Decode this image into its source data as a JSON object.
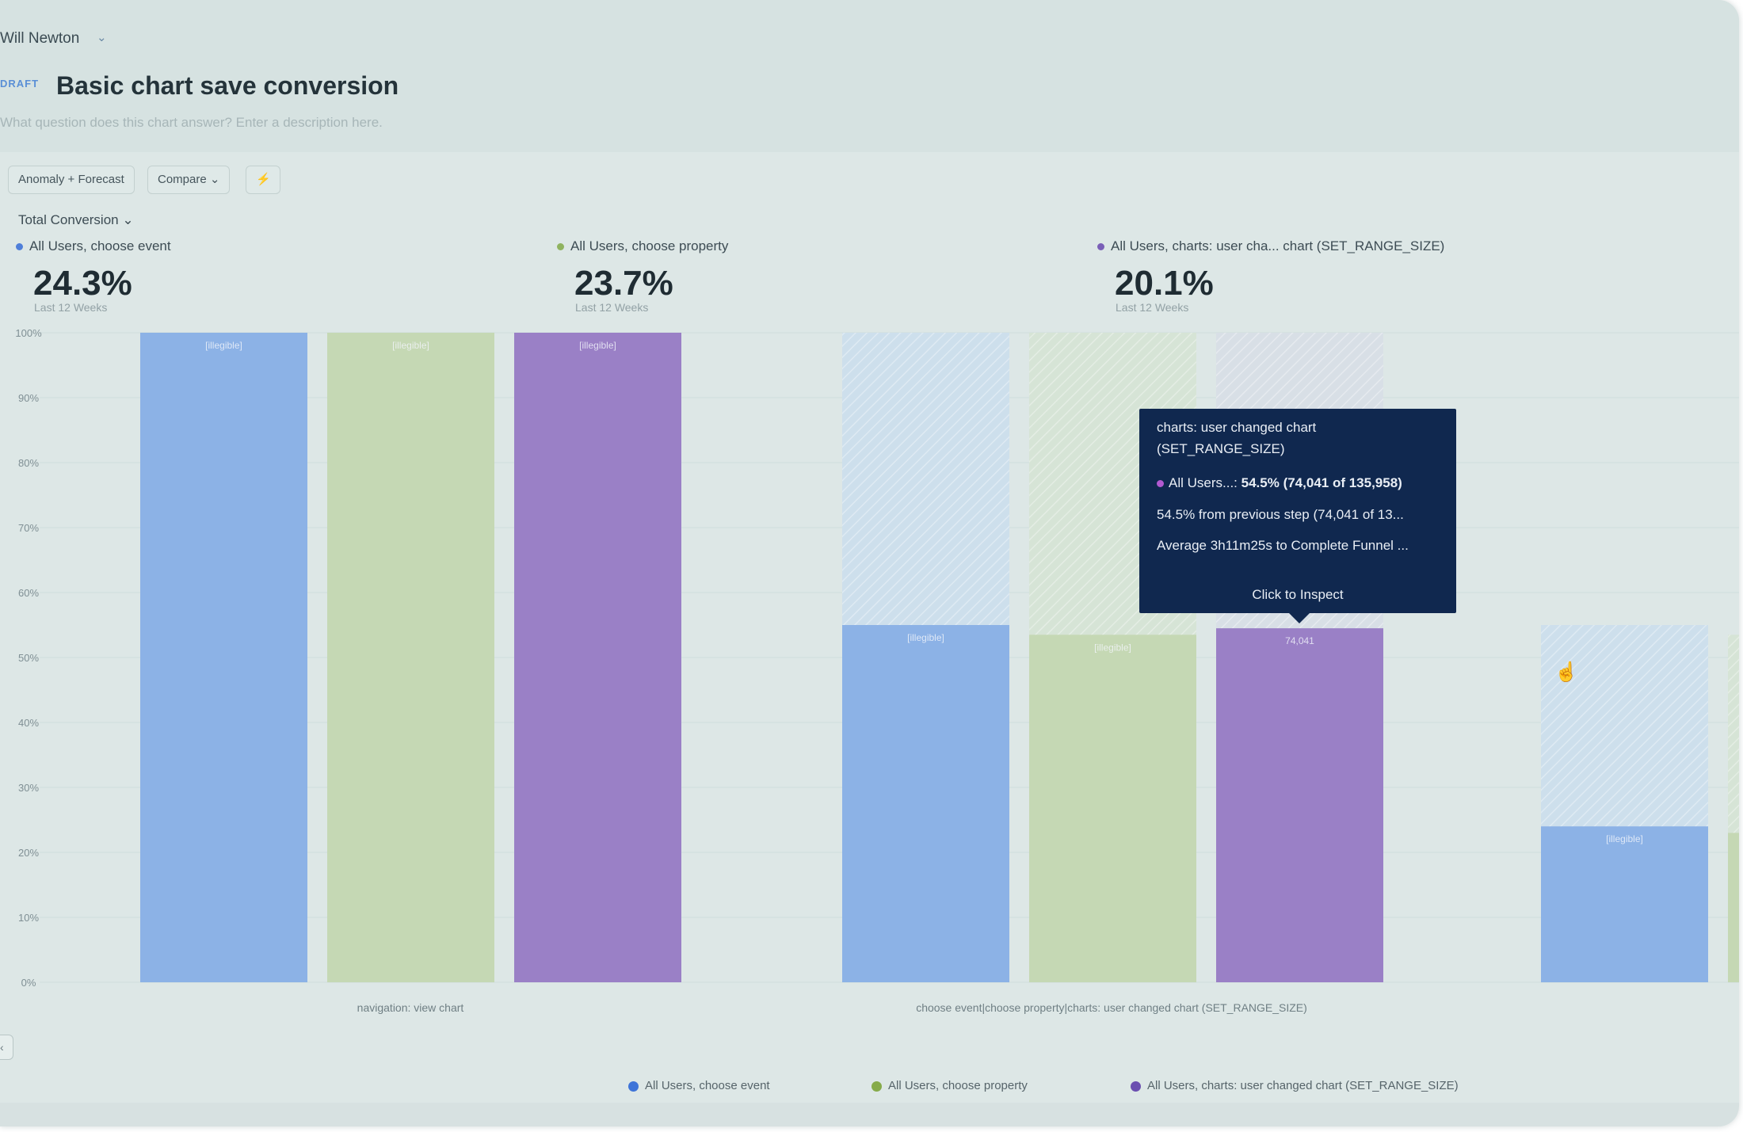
{
  "header": {
    "owner": "Will Newton",
    "owner_chevron": "⌄",
    "draft_badge": "DRAFT",
    "title": "Basic chart save conversion",
    "description_placeholder": "What question does this chart answer? Enter a description here."
  },
  "toolbar": {
    "anomaly_label": "Anomaly + Forecast",
    "compare_label": "Compare ⌄",
    "bolt_icon": "⚡"
  },
  "metric_select": "Total Conversion ⌄",
  "summaries": [
    {
      "label": "All Users, choose event",
      "value": "24.3%",
      "period": "Last 12 Weeks",
      "color": "#4f7fd9"
    },
    {
      "label": "All Users, choose property",
      "value": "23.7%",
      "period": "Last 12 Weeks",
      "color": "#8fb35f"
    },
    {
      "label": "All Users, charts: user cha... chart (SET_RANGE_SIZE)",
      "value": "20.1%",
      "period": "Last 12 Weeks",
      "color": "#7a5fb7"
    }
  ],
  "tooltip": {
    "title_line1": "charts: user changed chart",
    "title_line2": "(SET_RANGE_SIZE)",
    "series_dot_color": "#b25ad1",
    "series_name": "All Users...:",
    "series_value": "54.5% (74,041 of 135,958)",
    "from_previous": "54.5% from previous step (74,041 of 13...",
    "average": "Average 3h11m25s to Complete Funnel ...",
    "action": "Click to Inspect"
  },
  "bottom_legend": [
    {
      "label": "All Users, choose event",
      "color": "#3e74d8"
    },
    {
      "label": "All Users, choose property",
      "color": "#86ab4a"
    },
    {
      "label": "All Users, charts: user changed chart (SET_RANGE_SIZE)",
      "color": "#6b4fb0"
    }
  ],
  "colors": {
    "blue": "#8cb2e6",
    "green": "#c5d8b4",
    "purple": "#9a80c6",
    "blue_ghost": "#cddfec",
    "green_ghost": "#d6e4d6",
    "purple_ghost": "#d8dfe6"
  },
  "chart_data": {
    "type": "bar",
    "title": "Basic chart save conversion",
    "ylabel": "",
    "ylim": [
      0,
      100
    ],
    "y_ticks": [
      "0%",
      "10%",
      "20%",
      "30%",
      "40%",
      "50%",
      "60%",
      "70%",
      "80%",
      "90%",
      "100%"
    ],
    "categories": [
      "navigation: view chart",
      "choose event|choose property|charts: user changed chart (SET_RANGE_SIZE)",
      ""
    ],
    "x_labels": [
      "navigation: view chart",
      "choose event|choose property|charts: user changed chart (SET_RANGE_SIZE)"
    ],
    "series": [
      {
        "name": "All Users, choose event",
        "values": [
          100,
          55,
          24
        ],
        "prev_step": [
          null,
          100,
          55
        ],
        "labels": [
          "[illegible]",
          "[illegible]",
          "[illegible]"
        ]
      },
      {
        "name": "All Users, choose property",
        "values": [
          100,
          53.5,
          23
        ],
        "prev_step": [
          null,
          100,
          53.5
        ],
        "labels": [
          "[illegible]",
          "[illegible]",
          ""
        ]
      },
      {
        "name": "All Users, charts: user changed chart (SET_RANGE_SIZE)",
        "values": [
          100,
          54.5,
          null
        ],
        "prev_step": [
          null,
          100,
          null
        ],
        "labels": [
          "[illegible]",
          "74,041",
          ""
        ]
      }
    ]
  }
}
